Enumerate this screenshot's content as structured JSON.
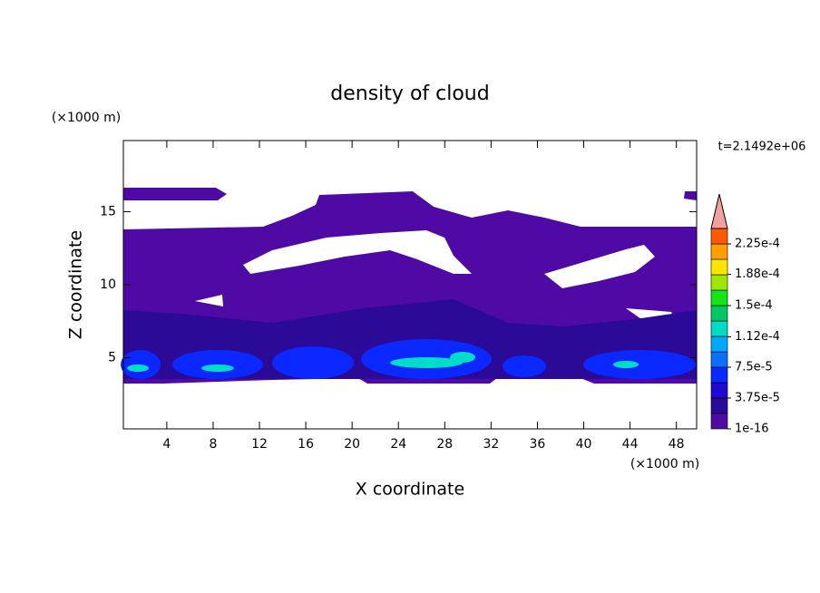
{
  "chart_data": {
    "type": "contour",
    "title": "density of cloud",
    "x_label": "X coordinate",
    "y_label": "Z coordinate",
    "x_unit": "(×1000 m)",
    "y_unit": "(×1000 m)",
    "annotation": "t=2.1492e+06",
    "xlim": [
      0.25,
      49.75
    ],
    "ylim": [
      0.125,
      19.875
    ],
    "xticks": [
      4,
      8,
      12,
      16,
      20,
      24,
      28,
      32,
      36,
      40,
      44,
      48
    ],
    "yticks": [
      5,
      10,
      15
    ],
    "colorbar": {
      "ticks": [
        {
          "value": 1e-16,
          "label": "1e-16"
        },
        {
          "value": 3.75e-05,
          "label": "3.75e-5"
        },
        {
          "value": 7.5e-05,
          "label": "7.5e-5"
        },
        {
          "value": 0.000112,
          "label": "1.12e-4"
        },
        {
          "value": 0.00015,
          "label": "1.5e-4"
        },
        {
          "value": 0.000188,
          "label": "1.88e-4"
        },
        {
          "value": 0.000225,
          "label": "2.25e-4"
        }
      ],
      "colors": [
        "#4f0aa6",
        "#2a0a96",
        "#1e0ad2",
        "#0a28ff",
        "#0a6eff",
        "#00a8ff",
        "#00dcc8",
        "#00c864",
        "#14e614",
        "#a0e600",
        "#ffe600",
        "#ffa000",
        "#ff5a00"
      ],
      "extend_color": "#f4a0a0"
    }
  }
}
